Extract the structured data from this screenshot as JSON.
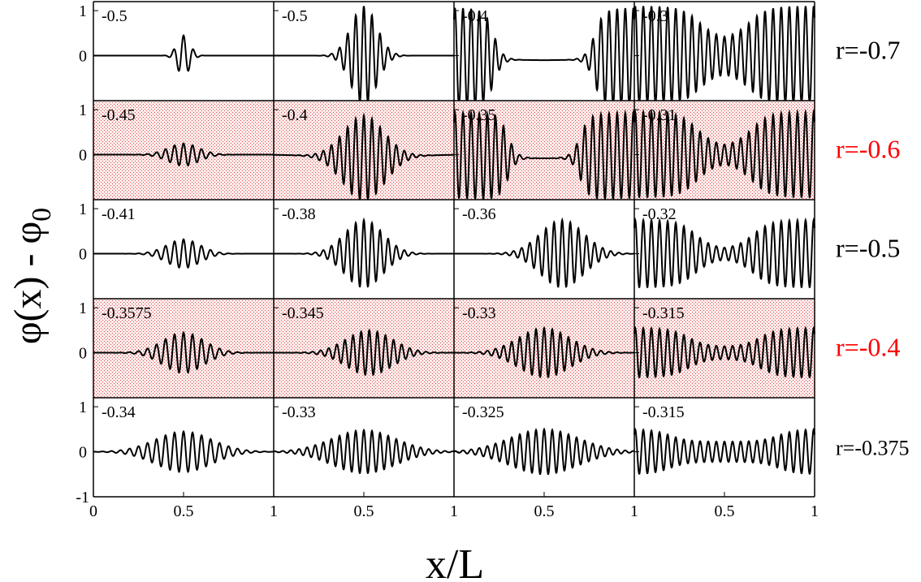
{
  "chart_data": {
    "type": "line",
    "xlabel": "x/L",
    "ylabel": "φ(x) - φ0",
    "ylabel_main": "φ(x) - φ",
    "ylabel_sub": "0",
    "xlim": [
      0,
      1
    ],
    "ylim": [
      -1,
      1.2
    ],
    "x_ticks": [
      "0",
      "0.5",
      "1",
      "0.5",
      "1",
      "0.5",
      "1",
      "0.5",
      "1"
    ],
    "y_ticks_per_row": [
      "1",
      "0"
    ],
    "y_tick_bottom": "-1",
    "grid": false,
    "colors": {
      "line": "#000000",
      "row_label": "#000000",
      "shaded_label": "#ff0000",
      "shade_dots": "#e64a4a",
      "shade_bg": "#fbecec"
    },
    "rows": [
      {
        "r_label": "r=-0.7",
        "shaded": false,
        "panels": [
          {
            "label": "-0.5",
            "amp": 0.45,
            "width": 0.05,
            "wl": 0.055,
            "pattern": "localized"
          },
          {
            "label": "-0.5",
            "amp": 1.1,
            "width": 0.1,
            "wl": 0.045,
            "pattern": "localized"
          },
          {
            "label": "-0.4",
            "amp": 1.1,
            "width": 0.28,
            "wl": 0.045,
            "pattern": "edges",
            "floor": -0.1
          },
          {
            "label": "-0.3",
            "amp": 1.1,
            "width": 0.14,
            "wl": 0.045,
            "pattern": "extended",
            "min_env": 0.35
          }
        ]
      },
      {
        "r_label": "r=-0.6",
        "shaded": true,
        "panels": [
          {
            "label": "-0.45",
            "amp": 0.25,
            "width": 0.12,
            "wl": 0.05,
            "pattern": "localized"
          },
          {
            "label": "-0.4",
            "amp": 0.95,
            "width": 0.16,
            "wl": 0.045,
            "pattern": "localized",
            "floor": -0.08
          },
          {
            "label": "-0.35",
            "amp": 0.95,
            "width": 0.2,
            "wl": 0.045,
            "pattern": "edges",
            "floor": -0.08
          },
          {
            "label": "-0.31",
            "amp": 0.95,
            "width": 0.15,
            "wl": 0.045,
            "pattern": "extended",
            "min_env": 0.2
          }
        ]
      },
      {
        "r_label": "r=-0.5",
        "shaded": false,
        "panels": [
          {
            "label": "-0.41",
            "amp": 0.32,
            "width": 0.13,
            "wl": 0.05,
            "pattern": "localized"
          },
          {
            "label": "-0.38",
            "amp": 0.75,
            "width": 0.15,
            "wl": 0.045,
            "pattern": "localized"
          },
          {
            "label": "-0.36",
            "amp": 0.75,
            "width": 0.17,
            "wl": 0.045,
            "pattern": "localized",
            "center": 0.6
          },
          {
            "label": "-0.32",
            "amp": 0.75,
            "width": 0.16,
            "wl": 0.045,
            "pattern": "extended",
            "min_env": 0.15
          }
        ]
      },
      {
        "r_label": "r=-0.4",
        "shaded": true,
        "panels": [
          {
            "label": "-0.3575",
            "amp": 0.45,
            "width": 0.16,
            "wl": 0.05,
            "pattern": "localized"
          },
          {
            "label": "-0.345",
            "amp": 0.5,
            "width": 0.18,
            "wl": 0.045,
            "pattern": "localized",
            "center": 0.53
          },
          {
            "label": "-0.33",
            "amp": 0.55,
            "width": 0.2,
            "wl": 0.045,
            "pattern": "localized"
          },
          {
            "label": "-0.315",
            "amp": 0.55,
            "width": 0.2,
            "wl": 0.045,
            "pattern": "extended",
            "min_env": 0.25
          }
        ]
      },
      {
        "r_label": "r=-0.375",
        "shaded": false,
        "panels": [
          {
            "label": "-0.34",
            "amp": 0.45,
            "width": 0.22,
            "wl": 0.05,
            "pattern": "localized"
          },
          {
            "label": "-0.33",
            "amp": 0.48,
            "width": 0.25,
            "wl": 0.045,
            "pattern": "localized"
          },
          {
            "label": "-0.325",
            "amp": 0.5,
            "width": 0.27,
            "wl": 0.045,
            "pattern": "localized"
          },
          {
            "label": "-0.315",
            "amp": 0.5,
            "width": 0.3,
            "wl": 0.045,
            "pattern": "extended",
            "min_env": 0.45
          }
        ]
      }
    ]
  }
}
